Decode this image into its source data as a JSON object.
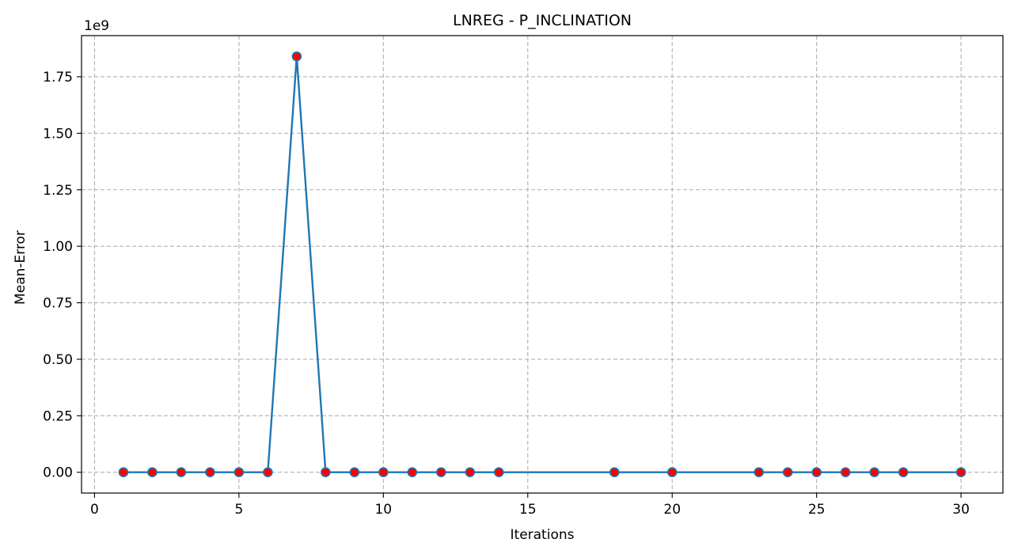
{
  "chart_data": {
    "type": "line",
    "title": "LNREG - P_INCLINATION",
    "xlabel": "Iterations",
    "ylabel": "Mean-Error",
    "y_offset_label": "1e9",
    "xlim": [
      -0.45,
      31.45
    ],
    "ylim": [
      -92000000.0,
      1932000000.0
    ],
    "xticks": [
      0,
      5,
      10,
      15,
      20,
      25,
      30
    ],
    "xtick_labels": [
      "0",
      "5",
      "10",
      "15",
      "20",
      "25",
      "30"
    ],
    "yticks": [
      0,
      250000000.0,
      500000000.0,
      750000000.0,
      1000000000.0,
      1250000000.0,
      1500000000.0,
      1750000000.0
    ],
    "ytick_labels": [
      "0.00",
      "0.25",
      "0.50",
      "0.75",
      "1.00",
      "1.25",
      "1.50",
      "1.75"
    ],
    "grid": true,
    "series": [
      {
        "x": [
          1,
          2,
          3,
          4,
          5,
          6,
          7,
          8,
          9,
          10,
          11,
          12,
          13,
          14,
          18,
          20,
          23,
          24,
          25,
          26,
          27,
          28,
          30
        ],
        "y": [
          0,
          0,
          0,
          0,
          0,
          0,
          1840000000,
          0,
          0,
          0,
          0,
          0,
          0,
          0,
          0,
          0,
          0,
          0,
          0,
          0,
          0,
          0,
          0
        ],
        "line_color": "#1f77b4",
        "marker_color": "#ff0000"
      }
    ]
  }
}
